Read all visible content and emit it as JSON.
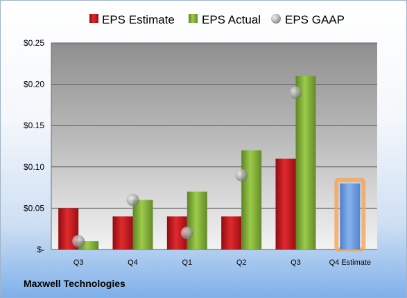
{
  "company": "Maxwell Technologies",
  "chart_data": {
    "type": "bar",
    "categories": [
      "Q3",
      "Q4",
      "Q1",
      "Q2",
      "Q3",
      "Q4 Estimate"
    ],
    "series": [
      {
        "name": "EPS Estimate",
        "kind": "bar",
        "color": "#d0161b",
        "values": [
          0.05,
          0.04,
          0.04,
          0.04,
          0.11,
          null
        ]
      },
      {
        "name": "EPS Actual",
        "kind": "bar",
        "color": "#8cb73c",
        "values": [
          0.01,
          0.06,
          0.07,
          0.12,
          0.21,
          null
        ]
      },
      {
        "name": "EPS GAAP",
        "kind": "marker",
        "color": "#a9a9a9",
        "values": [
          0.01,
          0.06,
          0.02,
          0.09,
          0.19,
          null
        ]
      }
    ],
    "forecast": {
      "category": "Q4 Estimate",
      "value": 0.08,
      "color": "#6a9be0",
      "highlight": "#f2a55a"
    },
    "y_ticks": [
      {
        "value": 0,
        "label": "$-"
      },
      {
        "value": 0.05,
        "label": "$0.05"
      },
      {
        "value": 0.1,
        "label": "$0.10"
      },
      {
        "value": 0.15,
        "label": "$0.15"
      },
      {
        "value": 0.2,
        "label": "$0.20"
      },
      {
        "value": 0.25,
        "label": "$0.25"
      }
    ],
    "ylim": [
      0,
      0.25
    ],
    "grid": true,
    "legend_position": "top"
  }
}
